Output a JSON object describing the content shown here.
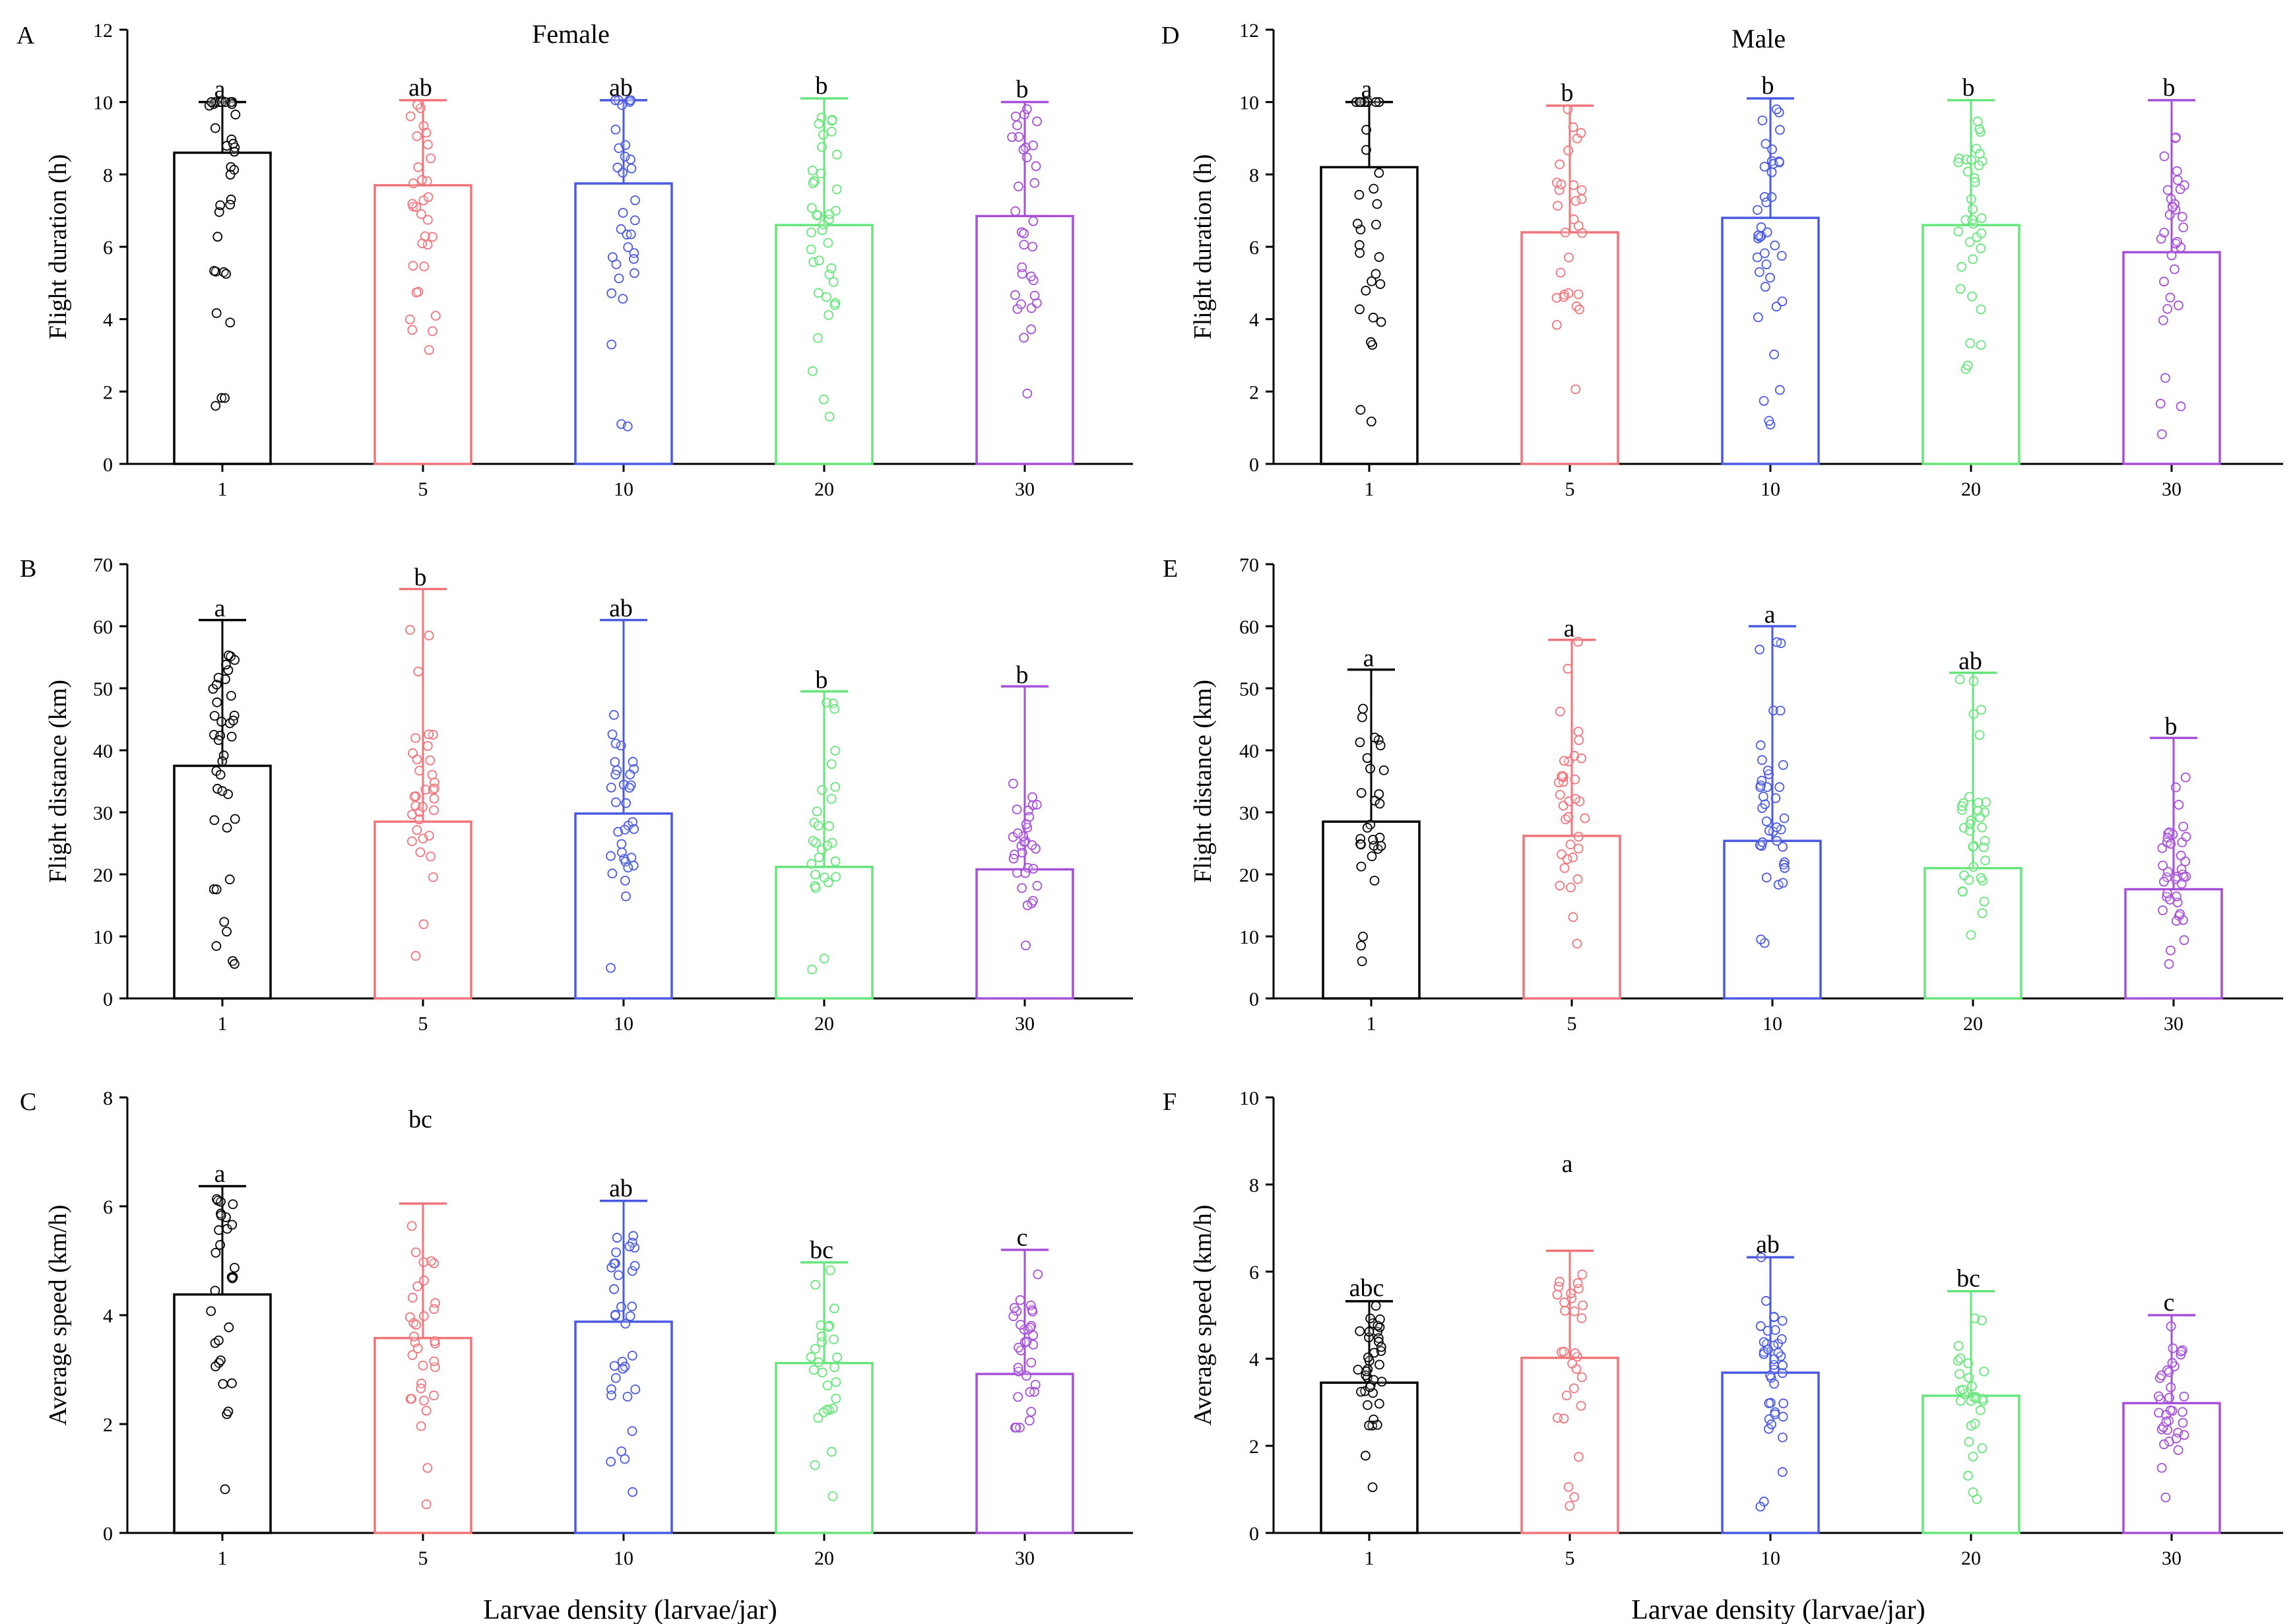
{
  "figure": {
    "x_title": "Larvae density (larvae/jar)"
  },
  "colors": {
    "1": "#000000",
    "5": "#f0757b",
    "10": "#4a5ae0",
    "20": "#66e67a",
    "30": "#a64fd8"
  },
  "chart_data": [
    {
      "type": "bar",
      "panel": "A",
      "title": "Female",
      "xlabel": "",
      "ylabel": "Flight duration (h)",
      "ylim": [
        0,
        12
      ],
      "yticks": [
        0,
        2,
        4,
        6,
        8,
        10,
        12
      ],
      "categories": [
        "1",
        "5",
        "10",
        "20",
        "30"
      ],
      "values": [
        8.6,
        7.7,
        7.75,
        6.6,
        6.85
      ],
      "error_upper": [
        10.0,
        10.05,
        10.05,
        10.1,
        10.0
      ],
      "letters": [
        "a",
        "ab",
        "ab",
        "b",
        "b"
      ],
      "letter_values": [
        10.2,
        10.25,
        10.25,
        10.3,
        10.2
      ]
    },
    {
      "type": "bar",
      "panel": "B",
      "title": "",
      "xlabel": "",
      "ylabel": "Flight distance (km)",
      "ylim": [
        0,
        70
      ],
      "yticks": [
        0,
        10,
        20,
        30,
        40,
        50,
        60,
        70
      ],
      "categories": [
        "1",
        "5",
        "10",
        "20",
        "30"
      ],
      "values": [
        37.5,
        28.5,
        29.8,
        21.2,
        20.8
      ],
      "error_upper": [
        61,
        66,
        61,
        49.5,
        50.3
      ],
      "letters": [
        "a",
        "b",
        "ab",
        "b",
        "b"
      ],
      "letter_values": [
        62,
        67,
        62,
        50.5,
        51.3
      ]
    },
    {
      "type": "bar",
      "panel": "C",
      "title": "",
      "xlabel": "Larvae density (larvae/jar)",
      "ylabel": "Average speed (km/h)",
      "ylim": [
        0,
        8
      ],
      "yticks": [
        0,
        2,
        4,
        6,
        8
      ],
      "categories": [
        "1",
        "5",
        "10",
        "20",
        "30"
      ],
      "values": [
        4.38,
        3.58,
        3.88,
        3.12,
        2.92
      ],
      "error_upper": [
        6.37,
        6.05,
        6.1,
        4.97,
        5.2
      ],
      "letters": [
        "a",
        "bc",
        "ab",
        "bc",
        "c"
      ],
      "letter_values": [
        6.5,
        7.5,
        6.23,
        5.1,
        5.33
      ]
    },
    {
      "type": "bar",
      "panel": "D",
      "title": "Male",
      "xlabel": "",
      "ylabel": "Flight duration (h)",
      "ylim": [
        0,
        12
      ],
      "yticks": [
        0,
        2,
        4,
        6,
        8,
        10,
        12
      ],
      "categories": [
        "1",
        "5",
        "10",
        "20",
        "30"
      ],
      "values": [
        8.2,
        6.4,
        6.8,
        6.6,
        5.85
      ],
      "error_upper": [
        10.0,
        9.9,
        10.1,
        10.05,
        10.05
      ],
      "letters": [
        "a",
        "b",
        "b",
        "b",
        "b"
      ],
      "letter_values": [
        10.2,
        10.1,
        10.3,
        10.25,
        10.25
      ]
    },
    {
      "type": "bar",
      "panel": "E",
      "title": "",
      "xlabel": "",
      "ylabel": "Flight distance (km)",
      "ylim": [
        0,
        70
      ],
      "yticks": [
        0,
        10,
        20,
        30,
        40,
        50,
        60,
        70
      ],
      "categories": [
        "1",
        "5",
        "10",
        "20",
        "30"
      ],
      "values": [
        28.5,
        26.2,
        25.4,
        21.0,
        17.6
      ],
      "error_upper": [
        53,
        57.8,
        60,
        52.5,
        42
      ],
      "letters": [
        "a",
        "a",
        "a",
        "ab",
        "b"
      ],
      "letter_values": [
        54,
        58.8,
        61,
        53.5,
        43
      ]
    },
    {
      "type": "bar",
      "panel": "F",
      "title": "",
      "xlabel": "Larvae density (larvae/jar)",
      "ylabel": "Average speed (km/h)",
      "ylim": [
        0,
        10
      ],
      "yticks": [
        0,
        2,
        4,
        6,
        8,
        10
      ],
      "categories": [
        "1",
        "5",
        "10",
        "20",
        "30"
      ],
      "values": [
        3.45,
        4.02,
        3.68,
        3.15,
        2.98
      ],
      "error_upper": [
        5.32,
        6.48,
        6.33,
        5.55,
        5.0
      ],
      "letters": [
        "abc",
        "a",
        "ab",
        "bc",
        "c"
      ],
      "letter_values": [
        5.5,
        8.35,
        6.5,
        5.72,
        5.17
      ]
    }
  ]
}
